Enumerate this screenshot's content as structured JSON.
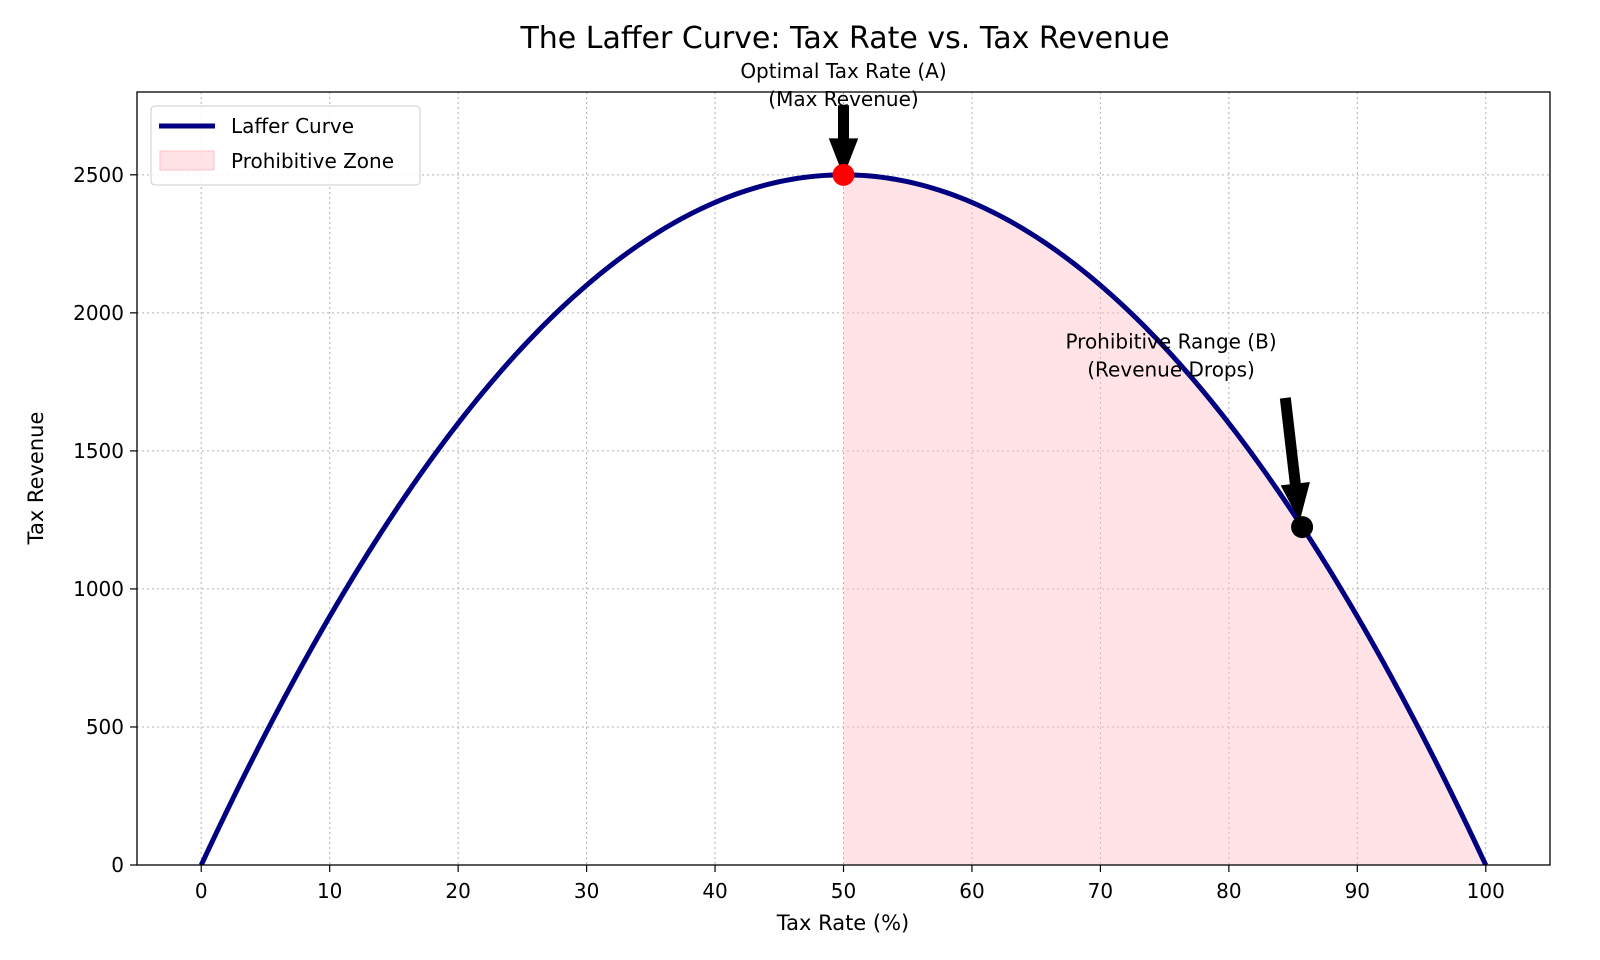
{
  "chart_data": {
    "type": "line",
    "title": "The Laffer Curve: Tax Rate vs. Tax Revenue",
    "xlabel": "Tax Rate (%)",
    "ylabel": "Tax Revenue",
    "xlim": [
      -5,
      105
    ],
    "ylim": [
      0,
      2800
    ],
    "xticks": [
      0,
      10,
      20,
      30,
      40,
      50,
      60,
      70,
      80,
      90,
      100
    ],
    "xtick_labels": [
      "0",
      "10",
      "20",
      "30",
      "40",
      "50",
      "60",
      "70",
      "80",
      "90",
      "100"
    ],
    "yticks": [
      0,
      500,
      1000,
      1500,
      2000,
      2500
    ],
    "ytick_labels": [
      "0",
      "500",
      "1000",
      "1500",
      "2000",
      "2500"
    ],
    "grid": true,
    "legend_position": "top-left",
    "series": [
      {
        "name": "Laffer Curve",
        "color": "#000080",
        "function": "revenue = rate * (100 - rate)",
        "x": [
          0,
          5,
          10,
          15,
          20,
          25,
          30,
          35,
          40,
          45,
          50,
          55,
          60,
          65,
          70,
          75,
          80,
          85,
          90,
          95,
          100
        ],
        "y": [
          0,
          475,
          900,
          1275,
          1600,
          1875,
          2100,
          2275,
          2400,
          2475,
          2500,
          2475,
          2400,
          2275,
          2100,
          1875,
          1600,
          1275,
          900,
          475,
          0
        ]
      }
    ],
    "shaded_region": {
      "name": "Prohibitive Zone",
      "x_from": 50,
      "x_to": 100,
      "color": "#ffc0c8"
    },
    "points": [
      {
        "name": "optimal",
        "x": 50,
        "y": 2500,
        "color": "#ff0000"
      },
      {
        "name": "prohibitive",
        "x": 85.7,
        "y": 1224,
        "color": "#000000"
      }
    ],
    "annotations": [
      {
        "lines": [
          "Optimal Tax Rate (A)",
          "(Max Revenue)"
        ],
        "text_x": 50,
        "text_y": 2850,
        "arrow_from": [
          50,
          2750
        ],
        "arrow_to": [
          50,
          2500
        ]
      },
      {
        "lines": [
          "Prohibitive Range (B)",
          "(Revenue Drops)"
        ],
        "text_x": 75.5,
        "text_y": 1870,
        "arrow_from": [
          84.4,
          1690
        ],
        "arrow_to": [
          85.5,
          1250
        ]
      }
    ]
  }
}
